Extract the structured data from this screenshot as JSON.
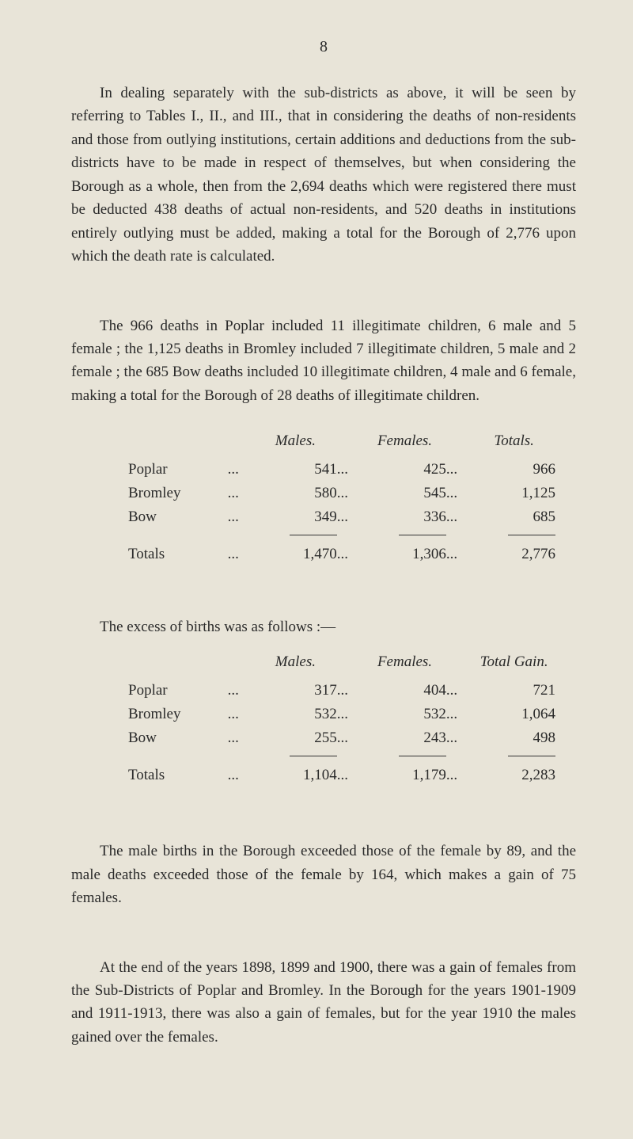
{
  "page_number": "8",
  "para1": "In dealing separately with the sub-districts as above, it will be seen by referring to Tables I., II., and III., that in considering the deaths of non-residents and those from outlying institutions, certain additions and deductions from the sub-districts have to be made in respect of themselves, but when considering the Borough as a whole, then from the 2,694 deaths which were registered there must be deducted 438 deaths of actual non-residents, and 520 deaths in institutions entirely outlying must be added, making a total for the Borough of 2,776 upon which the death rate is calculated.",
  "para2": "The 966 deaths in Poplar included 11 illegitimate children, 6 male and 5 female ; the 1,125 deaths in Bromley included 7 illegitimate children, 5 male and 2 female ; the 685 Bow deaths included 10 illegitimate children, 4 male and 6 female, making a total for the Borough of 28 deaths of illegitimate children.",
  "deaths_table": {
    "headers": {
      "males": "Males.",
      "females": "Females.",
      "totals": "Totals."
    },
    "rows": [
      {
        "label": "Poplar",
        "males": "541",
        "females": "425",
        "totals": "966"
      },
      {
        "label": "Bromley",
        "males": "580",
        "females": "545",
        "totals": "1,125"
      },
      {
        "label": "Bow",
        "males": "349",
        "females": "336",
        "totals": "685"
      }
    ],
    "totals_label": "Totals",
    "totals": {
      "males": "1,470",
      "females": "1,306",
      "totals": "2,776"
    }
  },
  "para3_intro": "The excess of births was as follows :—",
  "births_table": {
    "headers": {
      "males": "Males.",
      "females": "Females.",
      "totals": "Total Gain."
    },
    "rows": [
      {
        "label": "Poplar",
        "males": "317",
        "females": "404",
        "totals": "721"
      },
      {
        "label": "Bromley",
        "males": "532",
        "females": "532",
        "totals": "1,064"
      },
      {
        "label": "Bow",
        "males": "255",
        "females": "243",
        "totals": "498"
      }
    ],
    "totals_label": "Totals",
    "totals": {
      "males": "1,104",
      "females": "1,179",
      "totals": "2,283"
    }
  },
  "para4": "The male births in the Borough exceeded those of the female by 89, and the male deaths exceeded those of the female by 164, which makes a gain of 75 females.",
  "para5": "At the end of the years 1898, 1899 and 1900, there was a gain of females from the Sub-Districts of Poplar and Bromley. In the Borough for the years 1901-1909 and 1911-1913, there was also a gain of females, but for the year 1910 the males gained over the females.",
  "dots": "..."
}
